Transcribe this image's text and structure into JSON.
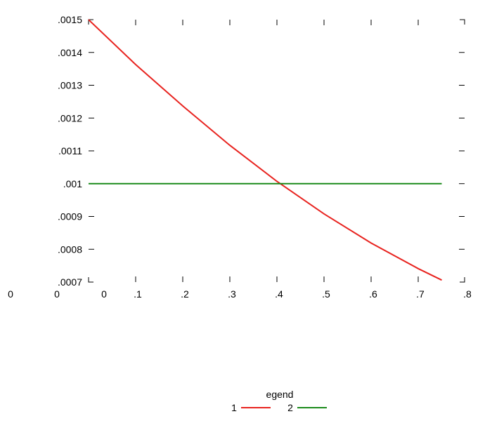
{
  "chart_data": {
    "type": "line",
    "title": "",
    "xlabel": "",
    "ylabel": "",
    "xlim": [
      0,
      0.8
    ],
    "ylim": [
      0.0007,
      0.0015
    ],
    "x_ticks": [
      0,
      0.1,
      0.2,
      0.3,
      0.4,
      0.5,
      0.6,
      0.7,
      0.8
    ],
    "x_tick_labels": [
      "0",
      ".1",
      ".2",
      ".3",
      ".4",
      ".5",
      ".6",
      ".7",
      ".8"
    ],
    "y_ticks": [
      0.0007,
      0.0008,
      0.0009,
      0.001,
      0.0011,
      0.0012,
      0.0013,
      0.0014,
      0.0015
    ],
    "y_tick_labels": [
      ".0007",
      ".0008",
      ".0009",
      ".001",
      ".0011",
      ".0012",
      ".0013",
      ".0014",
      ".0015"
    ],
    "extra_x_labels": [
      "0",
      "0"
    ],
    "grid": false,
    "legend": {
      "title": "egend",
      "position": "bottom-center"
    },
    "series": [
      {
        "name": "1",
        "color": "#e8231f",
        "x": [
          0,
          0.1,
          0.2,
          0.3,
          0.4,
          0.5,
          0.6,
          0.7,
          0.75
        ],
        "y": [
          0.0015,
          0.001363,
          0.001237,
          0.001117,
          0.001007,
          0.000908,
          0.000819,
          0.000741,
          0.000706
        ]
      },
      {
        "name": "2",
        "color": "#1a8a1a",
        "x": [
          0,
          0.75
        ],
        "y": [
          0.001,
          0.001
        ]
      }
    ]
  }
}
